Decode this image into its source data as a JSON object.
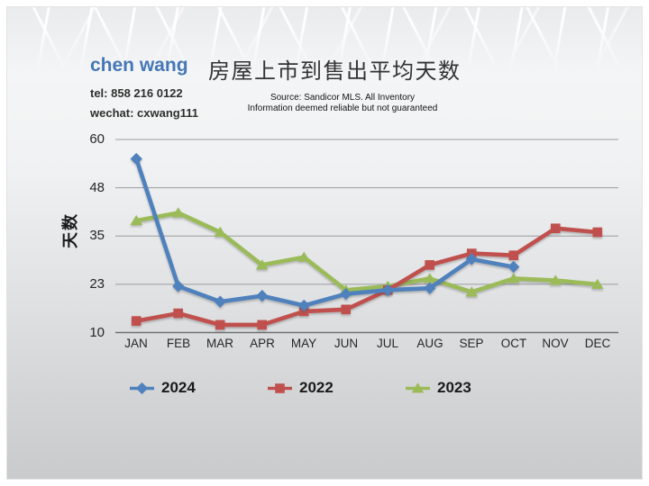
{
  "header": {
    "agent_name": "chen wang",
    "tel": "tel: 858 216 0122",
    "wechat": "wechat: cxwang111",
    "source_line1": "Source: Sandicor MLS. All Inventory",
    "source_line2": "Information deemed reliable but not guaranteed"
  },
  "colors": {
    "agent_name": "#4577B6",
    "title_text": "#333333",
    "series_2024": "#4F81BD",
    "series_2022": "#C0504D",
    "series_2023": "#9BBB59",
    "gridline": "#9A9C9E",
    "axis_line": "#6E7072"
  },
  "chart_data": {
    "type": "line",
    "title": "房屋上市到售出平均天数",
    "xlabel": "",
    "ylabel": "天数",
    "categories": [
      "JAN",
      "FEB",
      "MAR",
      "APR",
      "MAY",
      "JUN",
      "JUL",
      "AUG",
      "SEP",
      "OCT",
      "NOV",
      "DEC"
    ],
    "ylim": [
      10,
      60
    ],
    "grid": true,
    "legend_position": "bottom",
    "y_ticks": [
      {
        "value": 10,
        "label": "10"
      },
      {
        "value": 22.5,
        "label": "23"
      },
      {
        "value": 35,
        "label": "35"
      },
      {
        "value": 47.5,
        "label": "48"
      },
      {
        "value": 60,
        "label": "60"
      }
    ],
    "series": [
      {
        "name": "2024",
        "color": "#4F81BD",
        "marker": "diamond",
        "values": [
          55,
          22,
          18,
          19.5,
          17,
          20,
          21,
          21.5,
          29,
          27,
          null,
          null
        ]
      },
      {
        "name": "2022",
        "color": "#C0504D",
        "marker": "square",
        "values": [
          13,
          15,
          12,
          12,
          15.5,
          16,
          21,
          27.5,
          30.5,
          30,
          37,
          36
        ]
      },
      {
        "name": "2023",
        "color": "#9BBB59",
        "marker": "triangle",
        "values": [
          39,
          41,
          36,
          27.5,
          29.5,
          21,
          22,
          24,
          20.5,
          24,
          23.5,
          22.5
        ]
      }
    ]
  }
}
